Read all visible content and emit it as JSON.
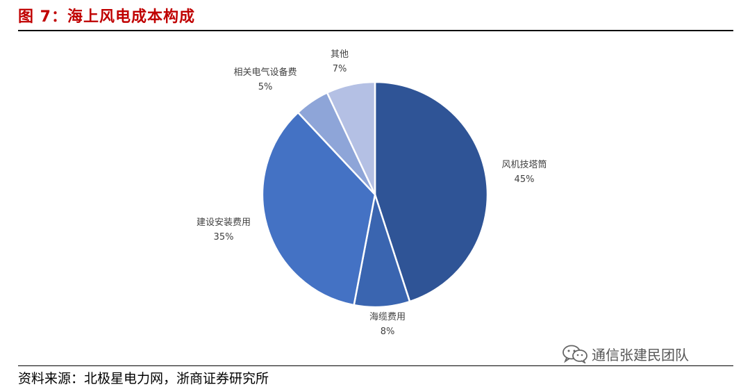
{
  "figure": {
    "title": "图 7：海上风电成本构成",
    "source": "资料来源：北极星电力网，浙商证券研究所"
  },
  "watermark": {
    "icon": "wechat-icon",
    "text": "通信张建民团队"
  },
  "chart_data": {
    "type": "pie",
    "title": "",
    "slices": [
      {
        "name": "风机技塔筒",
        "value": 45,
        "label": "45%",
        "color": "#2f5496"
      },
      {
        "name": "海缆费用",
        "value": 8,
        "label": "8%",
        "color": "#3a65b0"
      },
      {
        "name": "建设安装费用",
        "value": 35,
        "label": "35%",
        "color": "#4472c4"
      },
      {
        "name": "相关电气设备费",
        "value": 5,
        "label": "5%",
        "color": "#8ea5d8"
      },
      {
        "name": "其他",
        "value": 7,
        "label": "7%",
        "color": "#b4c0e4"
      }
    ]
  }
}
